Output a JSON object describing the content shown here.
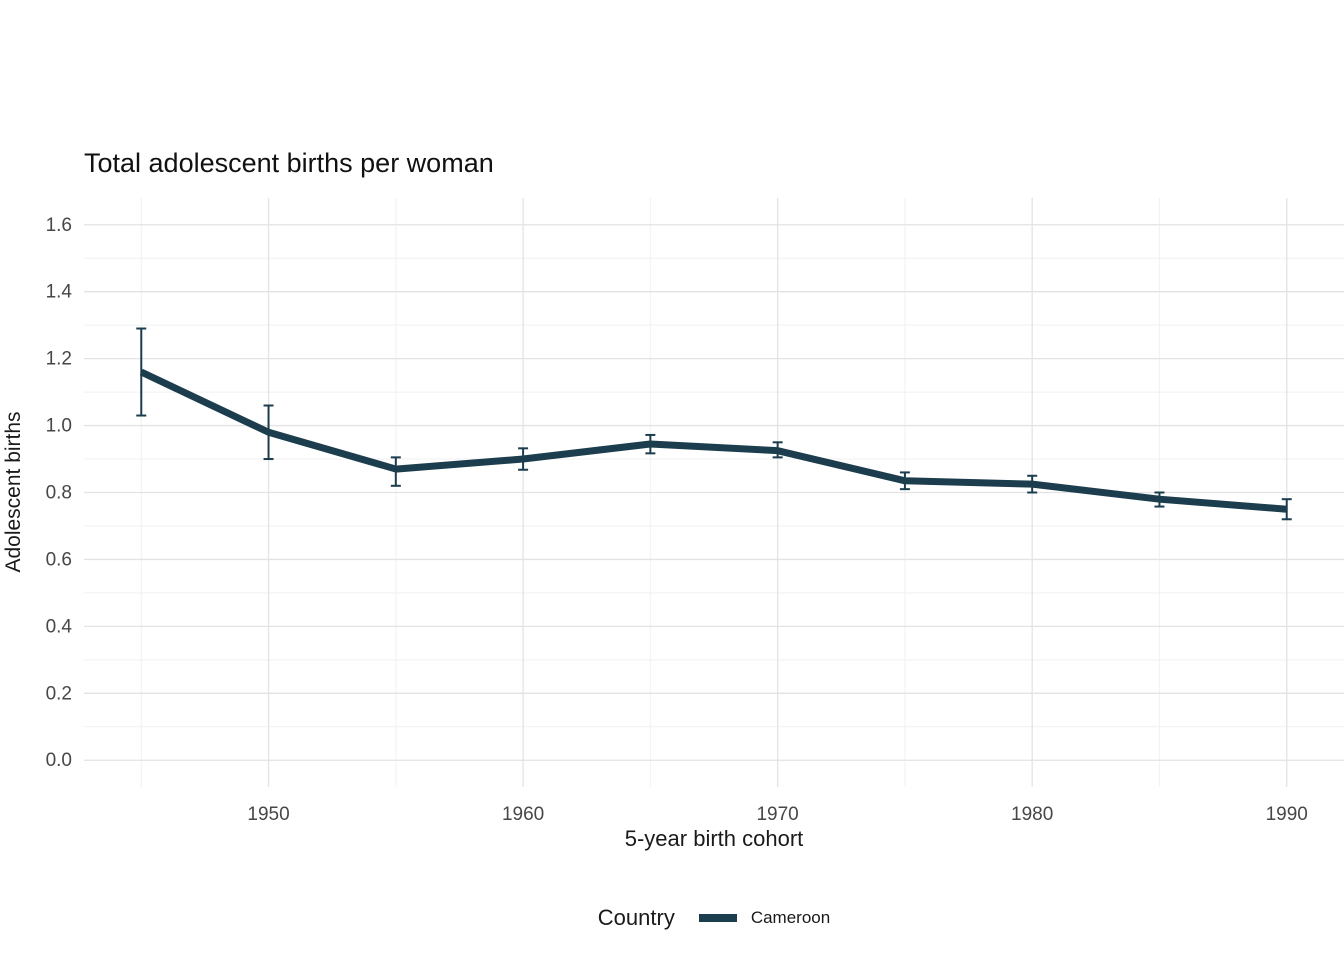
{
  "chart_data": {
    "type": "line",
    "title": "Total adolescent births per woman",
    "xlabel": "5-year birth cohort",
    "ylabel": "Adolescent births",
    "x": [
      1945,
      1950,
      1955,
      1960,
      1965,
      1970,
      1975,
      1980,
      1985,
      1990
    ],
    "series": [
      {
        "name": "Cameroon",
        "values": [
          1.16,
          0.98,
          0.87,
          0.9,
          0.945,
          0.925,
          0.835,
          0.825,
          0.78,
          0.75
        ],
        "ymin": [
          1.03,
          0.9,
          0.82,
          0.868,
          0.917,
          0.905,
          0.81,
          0.8,
          0.758,
          0.72
        ],
        "ymax": [
          1.29,
          1.06,
          0.905,
          0.932,
          0.972,
          0.95,
          0.86,
          0.85,
          0.8,
          0.78
        ],
        "color": "#1c3d4d"
      }
    ],
    "x_ticks": [
      "1950",
      "1960",
      "1970",
      "1980",
      "1990"
    ],
    "y_ticks": [
      "0.0",
      "0.2",
      "0.4",
      "0.6",
      "0.8",
      "1.0",
      "1.2",
      "1.4",
      "1.6"
    ],
    "ylim": [
      0,
      1.6
    ],
    "xlim_expanded": [
      1942.75,
      1992.25
    ],
    "ylim_expanded": [
      -0.08,
      1.68
    ],
    "grid": true,
    "legend": {
      "title": "Country",
      "position": "bottom",
      "entries": [
        {
          "label": "Cameroon",
          "color": "#1c3d4d"
        }
      ]
    },
    "colors": {
      "grid_major": "#e3e3e3",
      "grid_minor": "#f1f1f1",
      "tick_text": "#474747",
      "title_text": "#111111"
    }
  }
}
